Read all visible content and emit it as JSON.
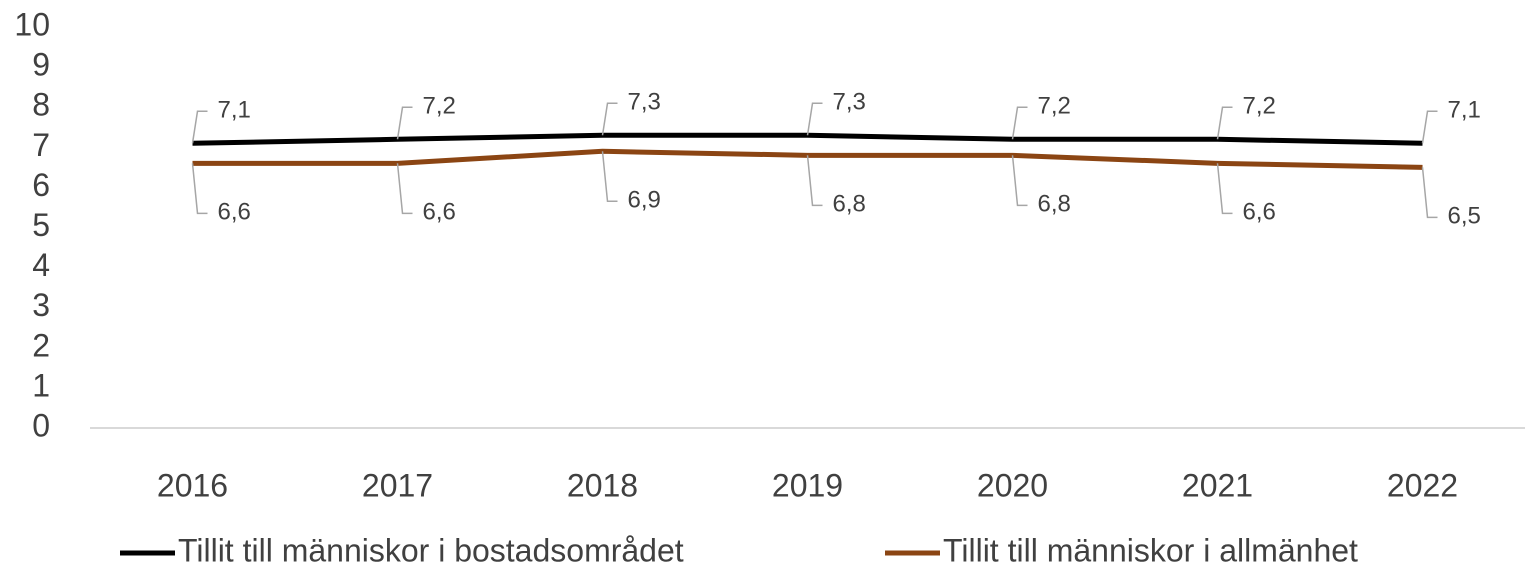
{
  "chart_data": {
    "type": "line",
    "categories": [
      "2016",
      "2017",
      "2018",
      "2019",
      "2020",
      "2021",
      "2022"
    ],
    "series": [
      {
        "name": "Tillit till människor i bostadsområdet",
        "color": "#000000",
        "values": [
          7.1,
          7.2,
          7.3,
          7.3,
          7.2,
          7.2,
          7.1
        ],
        "value_labels": [
          "7,1",
          "7,2",
          "7,3",
          "7,3",
          "7,2",
          "7,2",
          "7,1"
        ]
      },
      {
        "name": "Tillit till människor i allmänhet",
        "color": "#8b4513",
        "values": [
          6.6,
          6.6,
          6.9,
          6.8,
          6.8,
          6.6,
          6.5
        ],
        "value_labels": [
          "6,6",
          "6,6",
          "6,9",
          "6,8",
          "6,8",
          "6,6",
          "6,5"
        ]
      }
    ],
    "ylim": [
      0,
      10
    ],
    "yticks": [
      0,
      1,
      2,
      3,
      4,
      5,
      6,
      7,
      8,
      9,
      10
    ],
    "grid": false,
    "legend": "bottom"
  }
}
